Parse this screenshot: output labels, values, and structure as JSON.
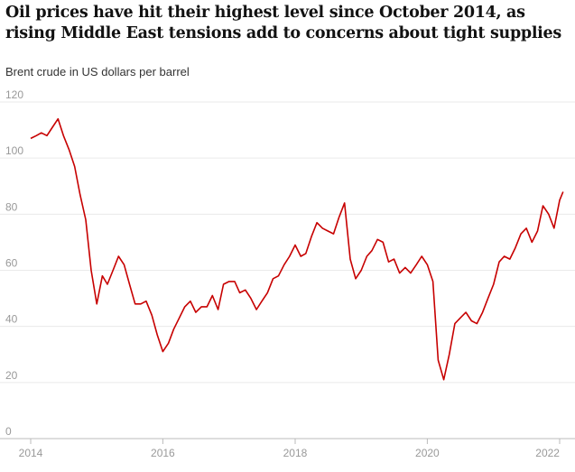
{
  "title": "Oil prices have hit their highest level since October 2014, as rising Middle East tensions add to concerns about tight supplies",
  "subtitle": "Brent crude in US dollars per barrel",
  "chart_data": {
    "type": "line",
    "title": "Oil prices have hit their highest level since October 2014, as rising Middle East tensions add to concerns about tight supplies",
    "ylabel": "Brent crude in US dollars per barrel",
    "xlabel": "",
    "ylim": [
      0,
      120
    ],
    "xlim": [
      "2014-01-01",
      "2022-01-31"
    ],
    "y_ticks": [
      0,
      20,
      40,
      60,
      80,
      100,
      120
    ],
    "x_ticks": [
      "2014",
      "2016",
      "2018",
      "2020",
      "2022"
    ],
    "grid": true,
    "color": "#c70000",
    "series": [
      {
        "name": "",
        "x": [
          "2014-01-01",
          "2014-02-01",
          "2014-03-01",
          "2014-04-01",
          "2014-05-01",
          "2014-06-01",
          "2014-07-01",
          "2014-08-01",
          "2014-09-01",
          "2014-10-01",
          "2014-11-01",
          "2014-12-01",
          "2015-01-01",
          "2015-02-01",
          "2015-03-01",
          "2015-04-01",
          "2015-05-01",
          "2015-06-01",
          "2015-07-01",
          "2015-08-01",
          "2015-09-01",
          "2015-10-01",
          "2015-11-01",
          "2015-12-01",
          "2016-01-01",
          "2016-02-01",
          "2016-03-01",
          "2016-04-01",
          "2016-05-01",
          "2016-06-01",
          "2016-07-01",
          "2016-08-01",
          "2016-09-01",
          "2016-10-01",
          "2016-11-01",
          "2016-12-01",
          "2017-01-01",
          "2017-02-01",
          "2017-03-01",
          "2017-04-01",
          "2017-05-01",
          "2017-06-01",
          "2017-07-01",
          "2017-08-01",
          "2017-09-01",
          "2017-10-01",
          "2017-11-01",
          "2017-12-01",
          "2018-01-01",
          "2018-02-01",
          "2018-03-01",
          "2018-04-01",
          "2018-05-01",
          "2018-06-01",
          "2018-07-01",
          "2018-08-01",
          "2018-09-01",
          "2018-10-01",
          "2018-11-01",
          "2018-12-01",
          "2019-01-01",
          "2019-02-01",
          "2019-03-01",
          "2019-04-01",
          "2019-05-01",
          "2019-06-01",
          "2019-07-01",
          "2019-08-01",
          "2019-09-01",
          "2019-10-01",
          "2019-11-01",
          "2019-12-01",
          "2020-01-01",
          "2020-02-01",
          "2020-03-01",
          "2020-04-01",
          "2020-05-01",
          "2020-06-01",
          "2020-07-01",
          "2020-08-01",
          "2020-09-01",
          "2020-10-01",
          "2020-11-01",
          "2020-12-01",
          "2021-01-01",
          "2021-02-01",
          "2021-03-01",
          "2021-04-01",
          "2021-05-01",
          "2021-06-01",
          "2021-07-01",
          "2021-08-01",
          "2021-09-01",
          "2021-10-01",
          "2021-11-01",
          "2021-12-01",
          "2022-01-01",
          "2022-01-20"
        ],
        "values": [
          107,
          108,
          109,
          108,
          111,
          114,
          108,
          103,
          97,
          87,
          78,
          60,
          48,
          58,
          55,
          60,
          65,
          62,
          55,
          48,
          48,
          49,
          44,
          37,
          31,
          34,
          39,
          43,
          47,
          49,
          45,
          47,
          47,
          51,
          46,
          55,
          56,
          56,
          52,
          53,
          50,
          46,
          49,
          52,
          57,
          58,
          62,
          65,
          69,
          65,
          66,
          72,
          77,
          75,
          74,
          73,
          79,
          84,
          64,
          57,
          60,
          65,
          67,
          71,
          70,
          63,
          64,
          59,
          61,
          59,
          62,
          65,
          62,
          56,
          28,
          21,
          30,
          41,
          43,
          45,
          42,
          41,
          45,
          50,
          55,
          63,
          65,
          64,
          68,
          73,
          75,
          70,
          74,
          83,
          80,
          75,
          85,
          88
        ]
      }
    ]
  }
}
